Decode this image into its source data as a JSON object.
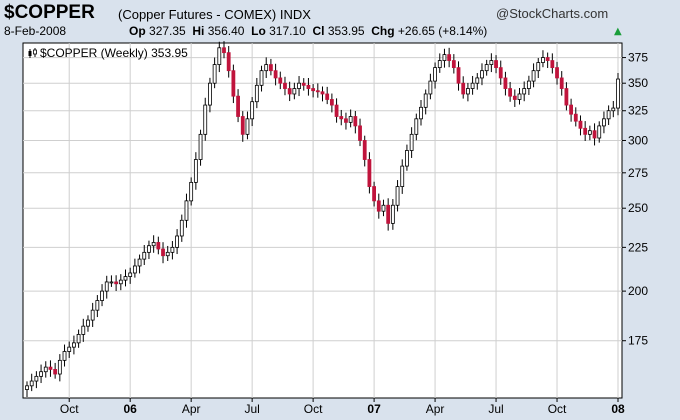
{
  "header": {
    "symbol": "$COPPER",
    "description": "(Copper Futures - COMEX)",
    "exchange": "INDX",
    "brand": "@StockCharts.com",
    "date": "8-Feb-2008",
    "open_label": "Op",
    "open": "327.35",
    "high_label": "Hi",
    "high": "356.40",
    "low_label": "Lo",
    "low": "317.10",
    "close_label": "Cl",
    "close": "353.95",
    "change_label": "Chg",
    "change": "+26.65 (+8.14%)",
    "change_icon": "up-triangle-icon",
    "up_color": "#1a9e3a"
  },
  "chart_data": {
    "type": "candlestick",
    "legend": "$COPPER (Weekly) 353.95",
    "legend_icon": "price-bars-icon",
    "ylim": [
      150,
      390
    ],
    "y_scale": "log",
    "y_ticks": [
      175,
      200,
      225,
      250,
      275,
      300,
      325,
      350,
      375
    ],
    "x_ticks": [
      {
        "label": "Oct",
        "bold": false,
        "week": 9
      },
      {
        "label": "06",
        "bold": true,
        "week": 22
      },
      {
        "label": "Apr",
        "bold": false,
        "week": 35
      },
      {
        "label": "Jul",
        "bold": false,
        "week": 48
      },
      {
        "label": "Oct",
        "bold": false,
        "week": 61
      },
      {
        "label": "07",
        "bold": true,
        "week": 74
      },
      {
        "label": "Apr",
        "bold": false,
        "week": 87
      },
      {
        "label": "Jul",
        "bold": false,
        "week": 100
      },
      {
        "label": "Oct",
        "bold": false,
        "week": 113
      },
      {
        "label": "08",
        "bold": true,
        "week": 126
      }
    ],
    "colors": {
      "up": "#ffffff",
      "down": "#c0143c",
      "outline": "#000000"
    },
    "closes": [
      155,
      157,
      159,
      161,
      163,
      162,
      160,
      166,
      170,
      172,
      174,
      178,
      182,
      185,
      190,
      195,
      200,
      205,
      205,
      204,
      206,
      208,
      210,
      214,
      218,
      222,
      226,
      228,
      224,
      220,
      222,
      225,
      232,
      242,
      255,
      268,
      285,
      305,
      330,
      350,
      368,
      385,
      380,
      362,
      338,
      320,
      305,
      318,
      333,
      348,
      362,
      368,
      362,
      355,
      350,
      345,
      340,
      345,
      350,
      348,
      345,
      343,
      342,
      340,
      335,
      330,
      320,
      318,
      315,
      320,
      312,
      300,
      285,
      265,
      255,
      248,
      252,
      240,
      252,
      265,
      280,
      292,
      305,
      318,
      328,
      340,
      352,
      365,
      372,
      378,
      372,
      365,
      350,
      340,
      345,
      350,
      355,
      362,
      368,
      372,
      365,
      355,
      345,
      338,
      335,
      340,
      345,
      352,
      362,
      370,
      375,
      372,
      365,
      355,
      345,
      330,
      322,
      316,
      310,
      305,
      308,
      302,
      312,
      318,
      325,
      327.35,
      353.95
    ]
  }
}
